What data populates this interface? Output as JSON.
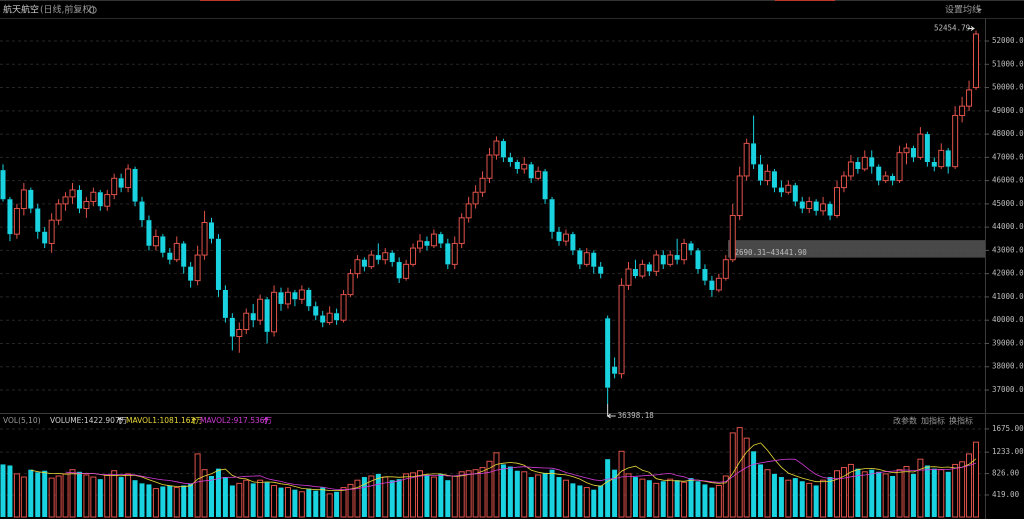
{
  "header": {
    "title": "航天航空",
    "subtitle": "(日线,前复权)",
    "settings": "设置均线"
  },
  "volume_header": {
    "name": "VOL(5,10)",
    "volume": "VOLUME:1422.907万",
    "mavol1": "MAVOL1:1081.162万",
    "mavol2": "MAVOL2:917.536万",
    "buttons": [
      "改参数",
      "加指标",
      "换指标"
    ]
  },
  "chart_data": {
    "type": "candlestick",
    "up_color": "#e0524a",
    "down_color": "#19d3e0",
    "ma_colors": [
      "#e8d83a",
      "#d23bd8"
    ],
    "ylim": [
      36140,
      52990
    ],
    "yticks": [
      {
        "value": 37000,
        "label": "37000.00"
      },
      {
        "value": 38000,
        "label": "38000.00"
      },
      {
        "value": 39000,
        "label": "39000.00"
      },
      {
        "value": 40000,
        "label": "40000.00"
      },
      {
        "value": 41000,
        "label": "41000.00"
      },
      {
        "value": 42000,
        "label": "42000.00"
      },
      {
        "value": 43000,
        "label": "43000.00"
      },
      {
        "value": 44000,
        "label": "44000.00"
      },
      {
        "value": 45000,
        "label": "45000.00"
      },
      {
        "value": 46000,
        "label": "46000.00"
      },
      {
        "value": 47000,
        "label": "47000.00"
      },
      {
        "value": 48000,
        "label": "48000.00"
      },
      {
        "value": 49000,
        "label": "49000.00"
      },
      {
        "value": 50000,
        "label": "50000.00"
      },
      {
        "value": 51000,
        "label": "51000.00"
      },
      {
        "value": 52000,
        "label": "52000.00"
      }
    ],
    "vol_ylim": [
      0,
      1750
    ],
    "vol_yticks": [
      {
        "value": 419,
        "label": "419.00"
      },
      {
        "value": 826,
        "label": "826.00"
      },
      {
        "value": 1233,
        "label": "1233.00"
      },
      {
        "value": 1675,
        "label": "1675.00"
      }
    ],
    "high_annotation": {
      "value": 52454.79,
      "label": "52454.79"
    },
    "low_annotation": {
      "value": 36398.18,
      "label": "36398.18"
    },
    "range": {
      "low": 42690.31,
      "high": 43441.9,
      "label": "42690.31~43441.90"
    },
    "ohlc": [
      [
        46450,
        46700,
        45100,
        45200
      ],
      [
        45200,
        45300,
        43400,
        43700
      ],
      [
        43700,
        45000,
        43500,
        44800
      ],
      [
        44800,
        45900,
        44500,
        45600
      ],
      [
        45600,
        45700,
        44600,
        44800
      ],
      [
        44800,
        45000,
        43500,
        43800
      ],
      [
        43800,
        44000,
        43100,
        43300
      ],
      [
        43300,
        44600,
        42900,
        44300
      ],
      [
        44300,
        45200,
        44100,
        45000
      ],
      [
        45000,
        45500,
        44700,
        45300
      ],
      [
        45300,
        45900,
        45000,
        45600
      ],
      [
        45600,
        45800,
        44600,
        44800
      ],
      [
        44800,
        45300,
        44400,
        45100
      ],
      [
        45100,
        45700,
        44900,
        45500
      ],
      [
        45500,
        45600,
        44700,
        44900
      ],
      [
        44900,
        45600,
        44700,
        45400
      ],
      [
        45400,
        46300,
        45200,
        46100
      ],
      [
        46100,
        46300,
        45500,
        45700
      ],
      [
        45700,
        46700,
        45500,
        46500
      ],
      [
        46500,
        46600,
        44900,
        45100
      ],
      [
        45100,
        45300,
        44000,
        44300
      ],
      [
        44300,
        44500,
        43000,
        43200
      ],
      [
        43200,
        43900,
        43000,
        43600
      ],
      [
        43600,
        43700,
        42700,
        42900
      ],
      [
        42900,
        43100,
        42400,
        42600
      ],
      [
        42600,
        43600,
        42500,
        43300
      ],
      [
        43300,
        43400,
        42000,
        42300
      ],
      [
        42300,
        42500,
        41400,
        41700
      ],
      [
        41700,
        43200,
        41500,
        42800
      ],
      [
        42800,
        44700,
        42600,
        44200
      ],
      [
        44200,
        44400,
        43300,
        43500
      ],
      [
        43500,
        43700,
        41000,
        41300
      ],
      [
        41300,
        41500,
        39900,
        40100
      ],
      [
        40100,
        40300,
        38700,
        39300
      ],
      [
        39300,
        39900,
        38600,
        39600
      ],
      [
        39600,
        40500,
        39400,
        40300
      ],
      [
        40300,
        40700,
        39700,
        40000
      ],
      [
        40000,
        41100,
        39800,
        40900
      ],
      [
        40900,
        41000,
        39000,
        39500
      ],
      [
        39500,
        41500,
        39300,
        41200
      ],
      [
        41200,
        41400,
        40400,
        40700
      ],
      [
        40700,
        41400,
        40500,
        41200
      ],
      [
        41200,
        41300,
        40600,
        40900
      ],
      [
        40900,
        41500,
        40700,
        41300
      ],
      [
        41300,
        41400,
        40400,
        40600
      ],
      [
        40600,
        40800,
        40000,
        40200
      ],
      [
        40200,
        40400,
        39700,
        39900
      ],
      [
        39900,
        40600,
        39800,
        40300
      ],
      [
        40300,
        40500,
        39800,
        40000
      ],
      [
        40000,
        41300,
        39900,
        41100
      ],
      [
        41100,
        42200,
        41000,
        42000
      ],
      [
        42000,
        42800,
        41800,
        42600
      ],
      [
        42600,
        42700,
        42100,
        42300
      ],
      [
        42300,
        43000,
        42200,
        42800
      ],
      [
        42800,
        43300,
        42400,
        42600
      ],
      [
        42600,
        43100,
        42400,
        42900
      ],
      [
        42900,
        43000,
        42300,
        42500
      ],
      [
        42500,
        42700,
        41600,
        41800
      ],
      [
        41800,
        42600,
        41700,
        42400
      ],
      [
        42400,
        43300,
        42300,
        43100
      ],
      [
        43100,
        43700,
        42900,
        43400
      ],
      [
        43400,
        43600,
        43000,
        43200
      ],
      [
        43200,
        43900,
        43100,
        43700
      ],
      [
        43700,
        43800,
        43100,
        43300
      ],
      [
        43300,
        43500,
        42200,
        42400
      ],
      [
        42400,
        43600,
        42200,
        43300
      ],
      [
        43300,
        44600,
        43100,
        44400
      ],
      [
        44400,
        45300,
        44200,
        45000
      ],
      [
        45000,
        45800,
        44800,
        45500
      ],
      [
        45500,
        46400,
        45300,
        46100
      ],
      [
        46100,
        47400,
        45900,
        47100
      ],
      [
        47100,
        47900,
        46900,
        47700
      ],
      [
        47700,
        47800,
        46800,
        47000
      ],
      [
        47000,
        47200,
        46600,
        46800
      ],
      [
        46800,
        46900,
        46300,
        46500
      ],
      [
        46500,
        47000,
        46300,
        46700
      ],
      [
        46700,
        46800,
        45900,
        46100
      ],
      [
        46100,
        46600,
        46000,
        46400
      ],
      [
        46400,
        46500,
        45000,
        45200
      ],
      [
        45200,
        45300,
        43500,
        43800
      ],
      [
        43800,
        44000,
        43200,
        43400
      ],
      [
        43400,
        43900,
        43200,
        43700
      ],
      [
        43700,
        43800,
        42800,
        43000
      ],
      [
        43000,
        43100,
        42200,
        42400
      ],
      [
        42400,
        43100,
        42300,
        42900
      ],
      [
        42900,
        43000,
        42000,
        42300
      ],
      [
        42300,
        42500,
        41800,
        42000
      ],
      [
        40080,
        40200,
        36398.18,
        37100
      ],
      [
        38000,
        38400,
        37500,
        37700
      ],
      [
        37700,
        41800,
        37500,
        41500
      ],
      [
        41500,
        42500,
        41300,
        42200
      ],
      [
        42200,
        42600,
        41800,
        41900
      ],
      [
        41900,
        42600,
        41800,
        42400
      ],
      [
        42400,
        42500,
        41900,
        42100
      ],
      [
        42100,
        43000,
        41900,
        42800
      ],
      [
        42800,
        43000,
        42200,
        42400
      ],
      [
        42400,
        43000,
        42300,
        42800
      ],
      [
        42800,
        43500,
        42400,
        42600
      ],
      [
        42600,
        43500,
        42400,
        43300
      ],
      [
        43300,
        43400,
        42800,
        43000
      ],
      [
        43000,
        43100,
        42000,
        42200
      ],
      [
        42200,
        42400,
        41500,
        41700
      ],
      [
        41700,
        41900,
        41000,
        41300
      ],
      [
        41300,
        42000,
        41200,
        41800
      ],
      [
        41800,
        42800,
        41700,
        42600
      ],
      [
        42600,
        45000,
        42500,
        44500
      ],
      [
        44500,
        46600,
        44300,
        46200
      ],
      [
        46200,
        47800,
        46000,
        47600
      ],
      [
        47600,
        48800,
        46500,
        46700
      ],
      [
        46700,
        47100,
        45800,
        46000
      ],
      [
        46000,
        46700,
        45800,
        46400
      ],
      [
        46400,
        46500,
        45500,
        45700
      ],
      [
        45700,
        46000,
        45300,
        45500
      ],
      [
        45500,
        46000,
        45400,
        45800
      ],
      [
        45800,
        45900,
        44900,
        45100
      ],
      [
        45100,
        45300,
        44600,
        44800
      ],
      [
        44800,
        45300,
        44600,
        45100
      ],
      [
        45100,
        45200,
        44500,
        44700
      ],
      [
        44700,
        45300,
        44500,
        45000
      ],
      [
        45000,
        45100,
        44300,
        44500
      ],
      [
        44500,
        46000,
        44400,
        45700
      ],
      [
        45700,
        46400,
        45500,
        46200
      ],
      [
        46200,
        47100,
        46000,
        46800
      ],
      [
        46800,
        47000,
        46300,
        46500
      ],
      [
        46500,
        47300,
        46400,
        47000
      ],
      [
        47000,
        47300,
        46300,
        46600
      ],
      [
        46600,
        46700,
        45800,
        46000
      ],
      [
        46000,
        46400,
        45900,
        46200
      ],
      [
        46200,
        46300,
        45800,
        46000
      ],
      [
        46000,
        47500,
        45900,
        47200
      ],
      [
        47200,
        47600,
        46700,
        47400
      ],
      [
        47400,
        47500,
        46800,
        47000
      ],
      [
        47000,
        48300,
        46900,
        48000
      ],
      [
        48000,
        48100,
        46600,
        46800
      ],
      [
        46800,
        47000,
        46400,
        46600
      ],
      [
        46600,
        47600,
        46500,
        47300
      ],
      [
        47300,
        47400,
        46300,
        46600
      ],
      [
        46600,
        49200,
        46500,
        48800
      ],
      [
        48800,
        49600,
        48500,
        49200
      ],
      [
        49200,
        50300,
        49000,
        49900
      ],
      [
        50000,
        52454.79,
        49900,
        52300
      ]
    ],
    "volume": [
      1000,
      980,
      820,
      760,
      900,
      850,
      880,
      740,
      780,
      820,
      900,
      860,
      800,
      760,
      720,
      800,
      880,
      760,
      820,
      700,
      640,
      620,
      540,
      580,
      600,
      560,
      600,
      640,
      1200,
      900,
      780,
      920,
      760,
      600,
      640,
      700,
      640,
      700,
      660,
      600,
      560,
      560,
      520,
      480,
      540,
      500,
      560,
      440,
      480,
      560,
      620,
      700,
      760,
      780,
      820,
      760,
      700,
      720,
      820,
      840,
      880,
      800,
      760,
      820,
      700,
      780,
      860,
      880,
      900,
      940,
      1060,
      1220,
      1000,
      960,
      880,
      860,
      760,
      800,
      840,
      900,
      760,
      700,
      640,
      600,
      560,
      520,
      600,
      1100,
      900,
      1250,
      820,
      760,
      720,
      700,
      640,
      680,
      720,
      700,
      660,
      740,
      680,
      620,
      560,
      600,
      780,
      1600,
      1700,
      1500,
      1250,
      1000,
      900,
      820,
      760,
      700,
      740,
      680,
      640,
      600,
      700,
      760,
      880,
      940,
      1000,
      920,
      860,
      900,
      860,
      820,
      780,
      900,
      960,
      820,
      1100,
      980,
      920,
      900,
      860,
      1000,
      1050,
      1200,
      1422.907
    ]
  }
}
